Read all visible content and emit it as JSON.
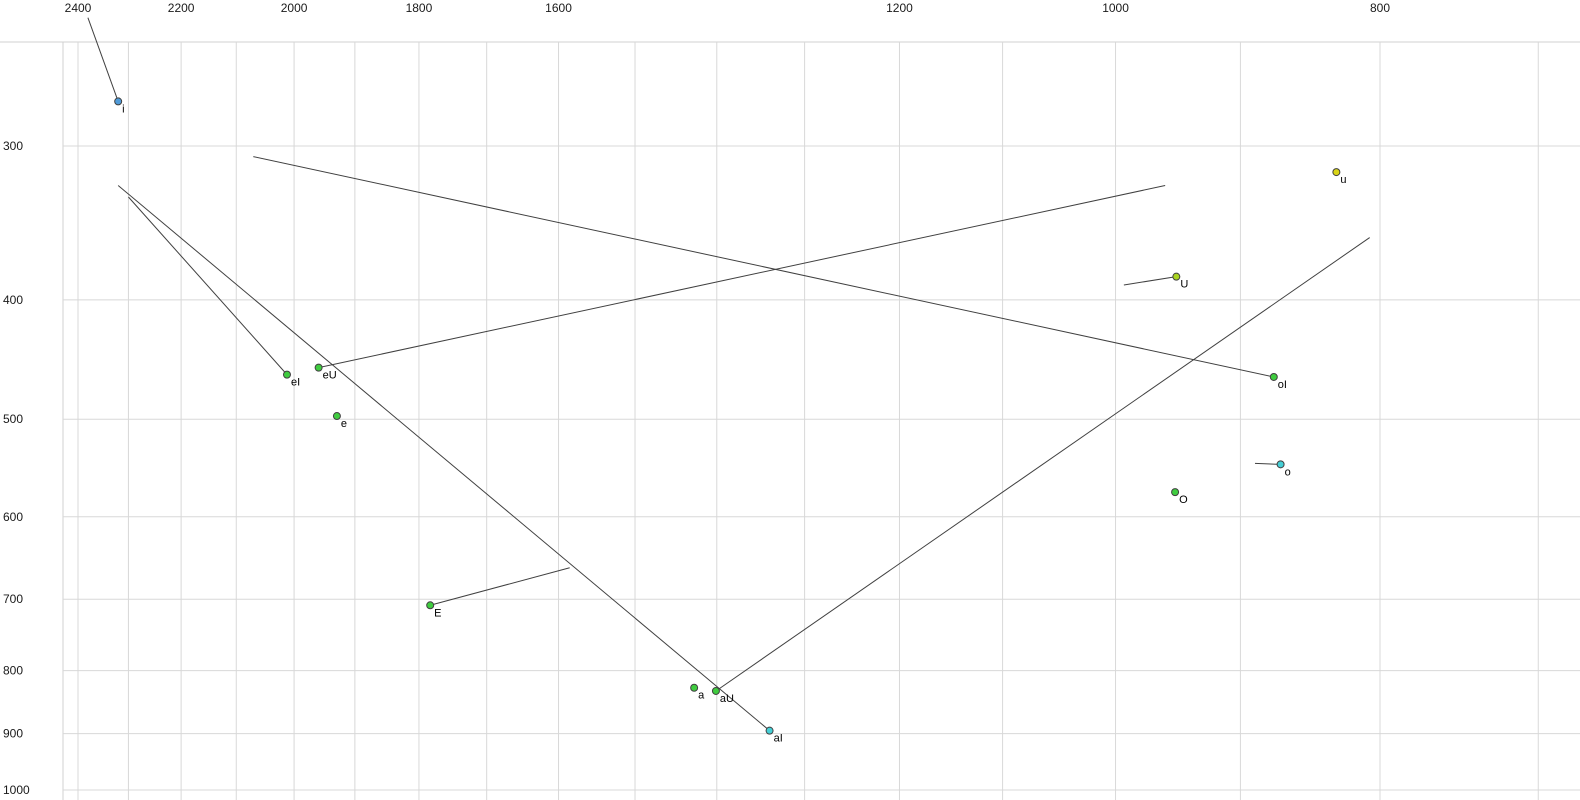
{
  "chart_data": {
    "type": "scatter",
    "title": "",
    "description": "Vowel formant plot: F2 (Hz) on horizontal axis (reversed, log scale), F1 (Hz) on vertical axis (increasing downward, log scale). Dots mark vowel onsets; thin lines show diphthong/vowel trajectories.",
    "x_axis": {
      "label": "",
      "unit": "Hz",
      "scale": "log",
      "reversed": true,
      "tick_labels": [
        2400,
        2200,
        2000,
        1800,
        1600,
        1200,
        1000,
        800
      ],
      "gridline_values": [
        2400,
        2300,
        2200,
        2100,
        2000,
        1900,
        1800,
        1700,
        1600,
        1500,
        1400,
        1300,
        1200,
        1100,
        1000,
        900,
        800,
        700
      ]
    },
    "y_axis": {
      "label": "",
      "unit": "Hz",
      "scale": "log",
      "increases_downward": true,
      "tick_labels": [
        300,
        400,
        500,
        600,
        700,
        800,
        900,
        1000
      ],
      "gridline_values": [
        300,
        400,
        500,
        600,
        700,
        800,
        900,
        1000
      ]
    },
    "points": [
      {
        "label": "i",
        "f2": 2320,
        "f1": 276,
        "color": "#4f9bd9",
        "trajectory": {
          "f2": 2380,
          "f1": 236
        }
      },
      {
        "label": "eI",
        "f2": 2012,
        "f1": 460,
        "color": "#3fcc3f",
        "trajectory": {
          "f2": 2300,
          "f1": 330
        }
      },
      {
        "label": "eU",
        "f2": 1959,
        "f1": 454,
        "color": "#3fcc3f",
        "trajectory": {
          "f2": 959,
          "f1": 323
        }
      },
      {
        "label": "e",
        "f2": 1929,
        "f1": 497,
        "color": "#3fcc3f"
      },
      {
        "label": "E",
        "f2": 1783,
        "f1": 708,
        "color": "#3fcc3f",
        "trajectory": {
          "f2": 1585,
          "f1": 660
        }
      },
      {
        "label": "a",
        "f2": 1427,
        "f1": 826,
        "color": "#3fcc3f"
      },
      {
        "label": "aU",
        "f2": 1401,
        "f1": 831,
        "color": "#3fcc3f",
        "trajectory": {
          "f2": 807,
          "f1": 356
        }
      },
      {
        "label": "aI",
        "f2": 1339,
        "f1": 895,
        "color": "#45cfd6",
        "trajectory": {
          "f2": 2320,
          "f1": 323
        }
      },
      {
        "label": "oI",
        "f2": 875,
        "f1": 462,
        "color": "#3fcc3f",
        "trajectory": {
          "f2": 2070,
          "f1": 306
        }
      },
      {
        "label": "o",
        "f2": 870,
        "f1": 544,
        "color": "#45cfd6",
        "trajectory": {
          "f2": 889,
          "f1": 543
        }
      },
      {
        "label": "O",
        "f2": 951,
        "f1": 573,
        "color": "#3fcc3f"
      },
      {
        "label": "U",
        "f2": 950,
        "f1": 383,
        "color": "#a9d420",
        "trajectory": {
          "f2": 993,
          "f1": 389
        }
      },
      {
        "label": "u",
        "f2": 830,
        "f1": 315,
        "color": "#d9d416"
      }
    ],
    "colors": {
      "background": "#ffffff",
      "grid": "#d8d8d8",
      "frame": "#d0d0d0",
      "trajectory": "#404040",
      "dot_stroke": "#404040",
      "tick_text": "#1a1a1a"
    }
  }
}
